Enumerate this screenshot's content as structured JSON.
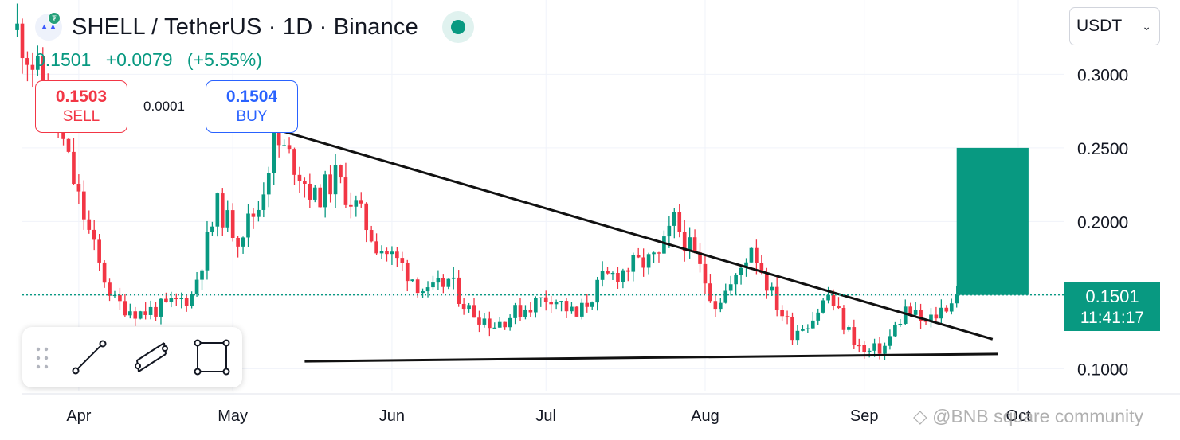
{
  "header": {
    "title": "SHELL / TetherUS · 1D · Binance",
    "last_price": "0.1501",
    "change": "+0.0079",
    "change_pct": "(+5.55%)"
  },
  "trade": {
    "sell_price": "0.1503",
    "sell_label": "SELL",
    "spread": "0.0001",
    "buy_price": "0.1504",
    "buy_label": "BUY"
  },
  "currency_select": {
    "value": "USDT"
  },
  "last_price_tag": {
    "price": "0.1501",
    "countdown": "11:41:17"
  },
  "watermark": "BNB square community",
  "colors": {
    "up": "#089981",
    "down": "#f23645",
    "sell": "#f23645",
    "buy": "#2962ff",
    "line": "#111111"
  },
  "toolbar_icons": [
    "drag-handle-icon",
    "trend-line-icon",
    "parallel-channel-icon",
    "rectangle-icon"
  ],
  "chart_data": {
    "type": "candlestick",
    "x_axis": {
      "type": "date",
      "ticks": [
        "Apr",
        "May",
        "Jun",
        "Jul",
        "Aug",
        "Sep",
        "Oct"
      ],
      "tick_dates": [
        "2025-04-01",
        "2025-05-01",
        "2025-06-01",
        "2025-07-01",
        "2025-08-01",
        "2025-09-01",
        "2025-10-01"
      ],
      "range": [
        "2025-03-21",
        "2025-10-10"
      ]
    },
    "y_axis": {
      "ticks": [
        "0.1000",
        "0.1500",
        "0.2000",
        "0.2500",
        "0.3000"
      ],
      "tick_values": [
        0.1,
        0.15,
        0.2,
        0.25,
        0.3
      ],
      "range": [
        0.0845,
        0.3505
      ],
      "position": "right"
    },
    "grid": true,
    "last_price": 0.1501,
    "path_points": [
      [
        "2025-03-20",
        0.33
      ],
      [
        "2025-03-24",
        0.3
      ],
      [
        "2025-03-28",
        0.265
      ],
      [
        "2025-04-01",
        0.215
      ],
      [
        "2025-04-05",
        0.17
      ],
      [
        "2025-04-08",
        0.145
      ],
      [
        "2025-04-13",
        0.138
      ],
      [
        "2025-04-18",
        0.142
      ],
      [
        "2025-04-23",
        0.15
      ],
      [
        "2025-04-28",
        0.21
      ],
      [
        "2025-05-02",
        0.19
      ],
      [
        "2025-05-06",
        0.21
      ],
      [
        "2025-05-09",
        0.255
      ],
      [
        "2025-05-13",
        0.24
      ],
      [
        "2025-05-17",
        0.215
      ],
      [
        "2025-05-21",
        0.23
      ],
      [
        "2025-05-25",
        0.21
      ],
      [
        "2025-05-29",
        0.185
      ],
      [
        "2025-06-03",
        0.17
      ],
      [
        "2025-06-08",
        0.15
      ],
      [
        "2025-06-12",
        0.16
      ],
      [
        "2025-06-16",
        0.14
      ],
      [
        "2025-06-21",
        0.13
      ],
      [
        "2025-06-26",
        0.14
      ],
      [
        "2025-07-02",
        0.15
      ],
      [
        "2025-07-07",
        0.135
      ],
      [
        "2025-07-12",
        0.16
      ],
      [
        "2025-07-18",
        0.17
      ],
      [
        "2025-07-23",
        0.175
      ],
      [
        "2025-07-26",
        0.2
      ],
      [
        "2025-07-30",
        0.175
      ],
      [
        "2025-08-03",
        0.145
      ],
      [
        "2025-08-07",
        0.16
      ],
      [
        "2025-08-10",
        0.185
      ],
      [
        "2025-08-14",
        0.15
      ],
      [
        "2025-08-18",
        0.125
      ],
      [
        "2025-08-22",
        0.135
      ],
      [
        "2025-08-25",
        0.15
      ],
      [
        "2025-08-28",
        0.13
      ],
      [
        "2025-09-01",
        0.11
      ],
      [
        "2025-09-05",
        0.115
      ],
      [
        "2025-09-09",
        0.14
      ],
      [
        "2025-09-13",
        0.13
      ],
      [
        "2025-09-16",
        0.14
      ],
      [
        "2025-09-19",
        0.1501
      ]
    ],
    "annotations": [
      {
        "type": "trendline",
        "from": [
          "2025-05-11",
          0.261
        ],
        "to": [
          "2025-09-26",
          0.12
        ]
      },
      {
        "type": "trendline",
        "from": [
          "2025-05-15",
          0.105
        ],
        "to": [
          "2025-09-27",
          0.11
        ]
      },
      {
        "type": "long-position",
        "from_date": "2025-09-19",
        "to_date": "2025-10-03",
        "entry": 0.1501,
        "target": 0.25
      },
      {
        "type": "price-line",
        "value": 0.1501,
        "style": "dotted"
      }
    ]
  }
}
